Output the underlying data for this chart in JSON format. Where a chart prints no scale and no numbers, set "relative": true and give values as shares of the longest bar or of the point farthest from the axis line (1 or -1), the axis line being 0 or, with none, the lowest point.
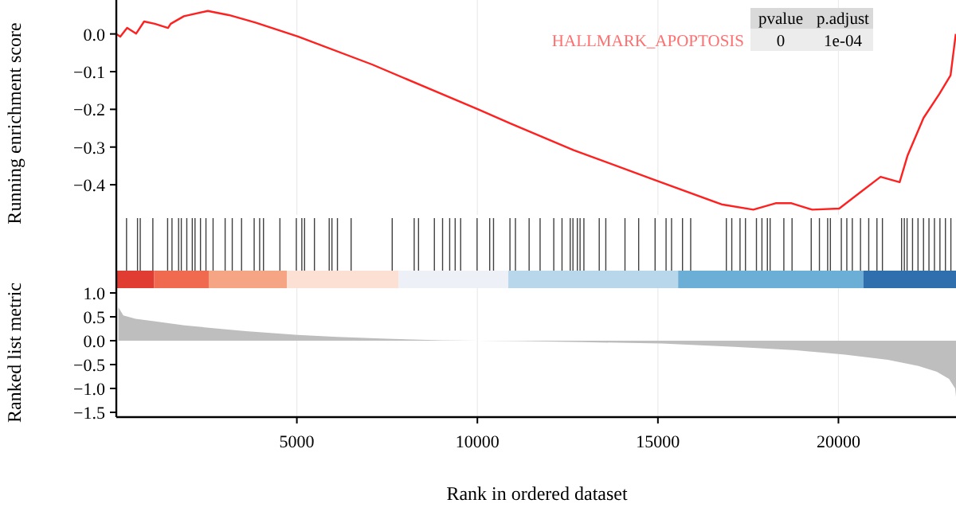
{
  "chart_data": [
    {
      "type": "line",
      "ylabel": "Running enrichment score",
      "xlim": [
        0,
        23300
      ],
      "ylim": [
        -0.48,
        0.09
      ],
      "yticks": [
        {
          "value": -0.4,
          "label": "−0.4"
        },
        {
          "value": -0.3,
          "label": "−0.3"
        },
        {
          "value": -0.2,
          "label": "−0.2"
        },
        {
          "value": -0.1,
          "label": "−0.1"
        },
        {
          "value": 0,
          "label": "0.0"
        }
      ],
      "tick_labels": "y",
      "grid": "x",
      "xticks": [
        5000,
        10000,
        15000,
        20000
      ],
      "legend": "top right",
      "annotations": [
        "pvalue",
        "p.adjust",
        "0",
        "1e-04"
      ],
      "series": [
        {
          "name": "HALLMARK_APOPTOSIS",
          "color": "#ff2020",
          "x": [
            0,
            110,
            300,
            550,
            770,
            1066,
            1432,
            1507,
            1872,
            2533,
            3119,
            3855,
            5031,
            7083,
            10022,
            10903,
            12665,
            14868,
            16761,
            17642,
            18259,
            18700,
            19272,
            20021,
            20594,
            21167,
            21695,
            21916,
            22356,
            22797,
            23105,
            23250
          ],
          "values": [
            0,
            -0.007,
            0.016,
            0.001,
            0.033,
            0.027,
            0.016,
            0.027,
            0.047,
            0.061,
            0.05,
            0.03,
            -0.007,
            -0.081,
            -0.2,
            -0.237,
            -0.308,
            -0.386,
            -0.452,
            -0.466,
            -0.449,
            -0.449,
            -0.466,
            -0.463,
            -0.421,
            -0.379,
            -0.393,
            -0.322,
            -0.223,
            -0.159,
            -0.11,
            0.0
          ]
        }
      ]
    },
    {
      "type": "bar",
      "relative": true,
      "tick_labels": false,
      "xlim": [
        0,
        23300
      ],
      "color": "#000000",
      "x": [
        283,
        587,
        663,
        1012,
        1421,
        1542,
        1725,
        1800,
        1952,
        2104,
        2180,
        2331,
        2483,
        2680,
        3014,
        3211,
        3469,
        3818,
        3970,
        4076,
        4531,
        4986,
        5138,
        5214,
        5487,
        5896,
        5972,
        6124,
        6503,
        7641,
        8250,
        8370,
        8809,
        9036,
        9233,
        9385,
        9537,
        9992,
        10341,
        10447,
        10902,
        11054,
        11433,
        11737,
        12116,
        12344,
        12571,
        12647,
        12768,
        12844,
        12950,
        13375,
        13557,
        14088,
        14467,
        14922,
        15226,
        15378,
        15681,
        15908,
        16895,
        17046,
        17274,
        17425,
        17729,
        17881,
        18032,
        18108,
        18488,
        18715,
        19246,
        19473,
        19701,
        19777,
        20080,
        20232,
        20384,
        20611,
        20839,
        21066,
        21218,
        21749,
        21825,
        21901,
        22052,
        22204,
        22356,
        22507,
        22659,
        22811,
        22963,
        23114
      ],
      "values": [
        1,
        1,
        1,
        1,
        1,
        1,
        1,
        1,
        1,
        1,
        1,
        1,
        1,
        1,
        1,
        1,
        1,
        1,
        1,
        1,
        1,
        1,
        1,
        1,
        1,
        1,
        1,
        1,
        1,
        1,
        1,
        1,
        1,
        1,
        1,
        1,
        1,
        1,
        1,
        1,
        1,
        1,
        1,
        1,
        1,
        1,
        1,
        1,
        1,
        1,
        1,
        1,
        1,
        1,
        1,
        1,
        1,
        1,
        1,
        1,
        1,
        1,
        1,
        1,
        1,
        1,
        1,
        1,
        1,
        1,
        1,
        1,
        1,
        1,
        1,
        1,
        1,
        1,
        1,
        1,
        1,
        1,
        1,
        1,
        1,
        1,
        1,
        1,
        1,
        1,
        1,
        1
      ]
    },
    {
      "type": "area",
      "ylabel": "Ranked list metric",
      "xlabel": "Rank in ordered dataset",
      "xlim": [
        0,
        23300
      ],
      "ylim": [
        -1.6,
        1.1
      ],
      "xticks": [
        5000,
        10000,
        15000,
        20000
      ],
      "yticks": [
        {
          "value": -1.5,
          "label": "−1.5"
        },
        {
          "value": -1,
          "label": "−1.0"
        },
        {
          "value": -0.5,
          "label": "−0.5"
        },
        {
          "value": 0,
          "label": "0.0"
        },
        {
          "value": 0.5,
          "label": "0.5"
        },
        {
          "value": 1,
          "label": "1.0"
        }
      ],
      "grid": "x",
      "color": "#bebebe",
      "x": [
        58,
        194,
        533,
        1041,
        1888,
        2735,
        3582,
        5022,
        6123,
        7478,
        9003,
        10019,
        11205,
        12899,
        15101,
        17134,
        18828,
        20183,
        21369,
        22216,
        22724,
        23063,
        23232,
        23300
      ],
      "values": [
        0.7,
        0.53,
        0.46,
        0.41,
        0.32,
        0.26,
        0.2,
        0.12,
        0.08,
        0.04,
        0.01,
        0,
        -0.01,
        -0.03,
        -0.06,
        -0.13,
        -0.2,
        -0.29,
        -0.4,
        -0.53,
        -0.65,
        -0.8,
        -1.0,
        -1.5
      ]
    }
  ]
}
